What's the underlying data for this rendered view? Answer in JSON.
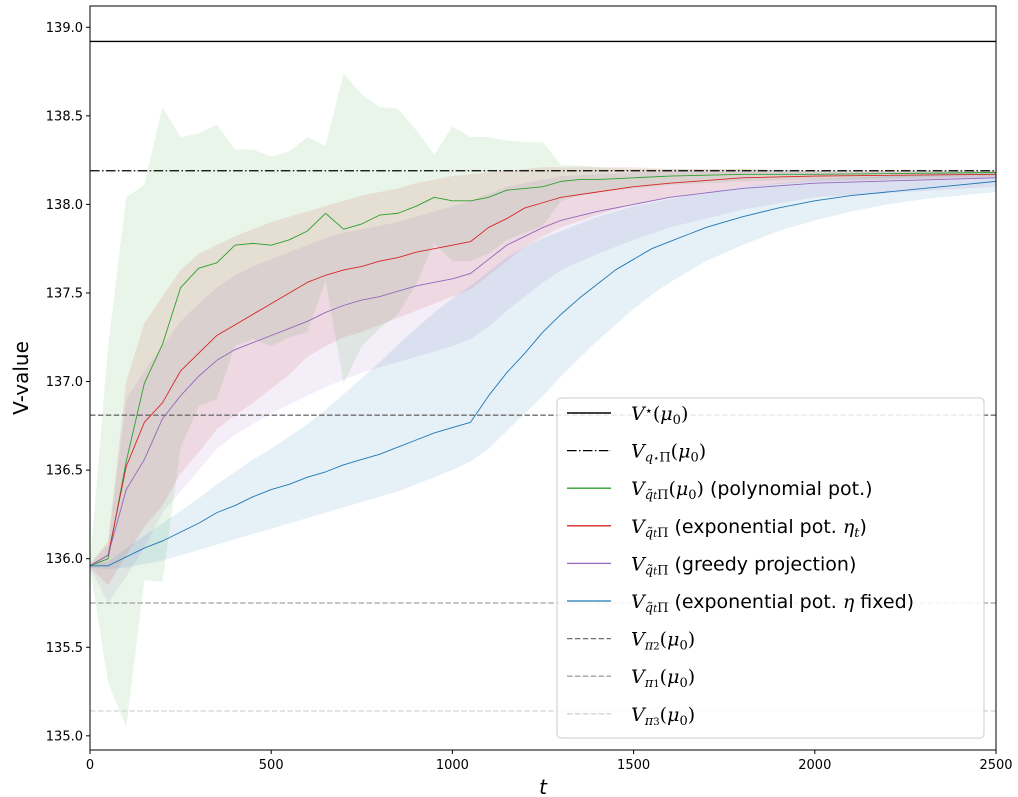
{
  "chart_data": {
    "type": "line",
    "xlabel": "t",
    "ylabel": "V-value",
    "xlim": [
      0,
      2500
    ],
    "ylim": [
      134.92,
      139.12
    ],
    "x_ticks": [
      "0",
      "500",
      "1000",
      "1500",
      "2000",
      "2500"
    ],
    "y_ticks": [
      "135.0",
      "135.5",
      "136.0",
      "136.5",
      "137.0",
      "137.5",
      "138.0",
      "138.5",
      "139.0"
    ],
    "grid": false,
    "legend_position": "lower-right",
    "hlines": [
      {
        "key": "vstar",
        "y": 138.92,
        "color": "#000000",
        "dash": "solid"
      },
      {
        "key": "vqpi",
        "y": 138.19,
        "color": "#000000",
        "dash": "dashdot"
      },
      {
        "key": "vpi2",
        "y": 136.81,
        "color": "#6e6e6e",
        "dash": "dashed"
      },
      {
        "key": "vpi1",
        "y": 135.75,
        "color": "#a3a3a3",
        "dash": "dashed"
      },
      {
        "key": "vpi3",
        "y": 135.14,
        "color": "#d3d3d3",
        "dash": "dashed"
      }
    ],
    "series": [
      {
        "key": "poly",
        "color": "#2ca02c",
        "x": [
          0,
          50,
          100,
          150,
          200,
          250,
          300,
          350,
          400,
          450,
          500,
          550,
          600,
          650,
          700,
          750,
          800,
          850,
          900,
          950,
          1000,
          1050,
          1100,
          1150,
          1200,
          1250,
          1300,
          1350,
          1400,
          1500,
          1600,
          1800,
          2000,
          2500
        ],
        "y": [
          135.96,
          136.0,
          136.55,
          136.99,
          137.21,
          137.53,
          137.64,
          137.67,
          137.77,
          137.78,
          137.77,
          137.8,
          137.85,
          137.95,
          137.86,
          137.89,
          137.94,
          137.95,
          137.99,
          138.04,
          138.02,
          138.02,
          138.04,
          138.08,
          138.09,
          138.1,
          138.13,
          138.14,
          138.14,
          138.15,
          138.16,
          138.17,
          138.17,
          138.18
        ],
        "upper": [
          135.97,
          137.2,
          138.04,
          138.11,
          138.55,
          138.38,
          138.4,
          138.45,
          138.31,
          138.31,
          138.27,
          138.3,
          138.38,
          138.33,
          138.74,
          138.62,
          138.55,
          138.54,
          138.42,
          138.28,
          138.44,
          138.38,
          138.38,
          138.36,
          138.35,
          138.35,
          138.22,
          138.22,
          138.21,
          138.2,
          138.2,
          138.2,
          138.19,
          138.19
        ],
        "lower": [
          135.95,
          135.3,
          135.05,
          135.88,
          135.87,
          136.63,
          136.86,
          136.9,
          137.2,
          137.24,
          137.2,
          137.25,
          137.28,
          137.57,
          136.99,
          137.2,
          137.3,
          137.38,
          137.55,
          137.78,
          137.68,
          137.68,
          137.72,
          137.8,
          137.84,
          137.88,
          138.02,
          138.05,
          138.07,
          138.09,
          138.11,
          138.13,
          138.14,
          138.16
        ]
      },
      {
        "key": "expeta",
        "color": "#d62728",
        "x": [
          0,
          50,
          100,
          150,
          200,
          250,
          300,
          350,
          400,
          450,
          500,
          550,
          600,
          650,
          700,
          750,
          800,
          850,
          900,
          950,
          1000,
          1050,
          1100,
          1150,
          1200,
          1250,
          1300,
          1400,
          1500,
          1600,
          1800,
          2000,
          2500
        ],
        "y": [
          135.96,
          136.02,
          136.52,
          136.77,
          136.88,
          137.06,
          137.16,
          137.26,
          137.32,
          137.38,
          137.44,
          137.5,
          137.56,
          137.6,
          137.63,
          137.65,
          137.68,
          137.7,
          137.73,
          137.75,
          137.77,
          137.79,
          137.87,
          137.92,
          137.98,
          138.01,
          138.04,
          138.07,
          138.1,
          138.12,
          138.15,
          138.16,
          138.17
        ],
        "upper": [
          135.97,
          136.1,
          137.0,
          137.33,
          137.48,
          137.63,
          137.72,
          137.77,
          137.82,
          137.86,
          137.9,
          137.93,
          137.96,
          137.99,
          138.02,
          138.05,
          138.07,
          138.09,
          138.12,
          138.14,
          138.16,
          138.17,
          138.18,
          138.19,
          138.2,
          138.21,
          138.21,
          138.21,
          138.21,
          138.2,
          138.2,
          138.19,
          138.19
        ],
        "lower": [
          135.95,
          135.85,
          136.02,
          136.18,
          136.3,
          136.48,
          136.6,
          136.73,
          136.81,
          136.88,
          136.96,
          137.04,
          137.14,
          137.2,
          137.25,
          137.28,
          137.32,
          137.36,
          137.4,
          137.44,
          137.48,
          137.52,
          137.6,
          137.68,
          137.76,
          137.82,
          137.87,
          137.94,
          138.0,
          138.04,
          138.1,
          138.13,
          138.15
        ]
      },
      {
        "key": "greedy",
        "color": "#9467bd",
        "x": [
          0,
          50,
          100,
          150,
          200,
          250,
          300,
          350,
          400,
          450,
          500,
          550,
          600,
          650,
          700,
          750,
          800,
          850,
          900,
          950,
          1000,
          1050,
          1100,
          1150,
          1200,
          1250,
          1300,
          1400,
          1500,
          1600,
          1800,
          2000,
          2500
        ],
        "y": [
          135.96,
          136.02,
          136.39,
          136.56,
          136.79,
          136.92,
          137.03,
          137.12,
          137.18,
          137.22,
          137.26,
          137.3,
          137.34,
          137.39,
          137.43,
          137.46,
          137.48,
          137.51,
          137.54,
          137.56,
          137.58,
          137.61,
          137.69,
          137.77,
          137.82,
          137.87,
          137.91,
          137.96,
          138.0,
          138.04,
          138.09,
          138.12,
          138.15
        ],
        "upper": [
          135.97,
          136.08,
          136.9,
          137.06,
          137.2,
          137.34,
          137.44,
          137.53,
          137.6,
          137.65,
          137.69,
          137.73,
          137.77,
          137.81,
          137.84,
          137.86,
          137.88,
          137.9,
          137.93,
          137.96,
          137.99,
          138.02,
          138.06,
          138.1,
          138.12,
          138.14,
          138.16,
          138.17,
          138.18,
          138.19,
          138.19,
          138.19,
          138.19
        ],
        "lower": [
          135.95,
          135.75,
          135.9,
          136.06,
          136.26,
          136.38,
          136.5,
          136.62,
          136.7,
          136.76,
          136.82,
          136.87,
          136.92,
          136.97,
          137.01,
          137.05,
          137.08,
          137.11,
          137.14,
          137.17,
          137.2,
          137.24,
          137.31,
          137.4,
          137.48,
          137.56,
          137.63,
          137.72,
          137.8,
          137.87,
          137.97,
          138.04,
          138.1
        ]
      },
      {
        "key": "expfixed",
        "color": "#1f77b4",
        "x": [
          0,
          50,
          100,
          150,
          200,
          250,
          300,
          350,
          400,
          450,
          500,
          550,
          600,
          650,
          700,
          750,
          800,
          850,
          900,
          950,
          1000,
          1050,
          1100,
          1150,
          1200,
          1250,
          1300,
          1350,
          1400,
          1450,
          1500,
          1550,
          1600,
          1650,
          1700,
          1800,
          1900,
          2000,
          2100,
          2200,
          2300,
          2400,
          2500
        ],
        "y": [
          135.96,
          135.96,
          136.01,
          136.06,
          136.1,
          136.15,
          136.2,
          136.26,
          136.3,
          136.35,
          136.39,
          136.42,
          136.46,
          136.49,
          136.53,
          136.56,
          136.59,
          136.63,
          136.67,
          136.71,
          136.74,
          136.77,
          136.92,
          137.05,
          137.16,
          137.28,
          137.38,
          137.47,
          137.55,
          137.63,
          137.69,
          137.75,
          137.79,
          137.83,
          137.87,
          137.93,
          137.98,
          138.02,
          138.05,
          138.07,
          138.09,
          138.11,
          138.13
        ],
        "upper": [
          135.97,
          135.98,
          136.06,
          136.13,
          136.2,
          136.27,
          136.34,
          136.42,
          136.49,
          136.56,
          136.62,
          136.69,
          136.76,
          136.84,
          136.93,
          137.02,
          137.11,
          137.21,
          137.3,
          137.39,
          137.47,
          137.54,
          137.62,
          137.7,
          137.76,
          137.81,
          137.85,
          137.89,
          137.93,
          137.96,
          137.99,
          138.01,
          138.03,
          138.05,
          138.07,
          138.1,
          138.12,
          138.14,
          138.15,
          138.16,
          138.17,
          138.18,
          138.18
        ],
        "lower": [
          135.95,
          135.94,
          135.95,
          135.97,
          135.99,
          136.02,
          136.05,
          136.08,
          136.11,
          136.14,
          136.17,
          136.2,
          136.23,
          136.26,
          136.29,
          136.32,
          136.35,
          136.38,
          136.42,
          136.46,
          136.5,
          136.55,
          136.62,
          136.72,
          136.82,
          136.92,
          137.03,
          137.13,
          137.23,
          137.32,
          137.41,
          137.49,
          137.56,
          137.62,
          137.68,
          137.77,
          137.85,
          137.91,
          137.96,
          138.0,
          138.03,
          138.05,
          138.07
        ]
      }
    ],
    "legend": [
      {
        "key": "vstar",
        "color": "#000000",
        "dash": "solid",
        "label": "V⋆(μ0)"
      },
      {
        "key": "vqpi",
        "color": "#000000",
        "dash": "dashdot",
        "label": "Vq⋆Π(μ0)"
      },
      {
        "key": "poly",
        "color": "#2ca02c",
        "dash": "solid",
        "label": "Vq̃tΠ(μ0) (polynomial pot.)"
      },
      {
        "key": "expeta",
        "color": "#d62728",
        "dash": "solid",
        "label": "Vq̃tΠ (exponential pot. ηt)"
      },
      {
        "key": "greedy",
        "color": "#9467bd",
        "dash": "solid",
        "label": "Vq̃tΠ (greedy projection)"
      },
      {
        "key": "expfixed",
        "color": "#1f77b4",
        "dash": "solid",
        "label": "Vq̃tΠ (exponential pot. η fixed)"
      },
      {
        "key": "vpi2",
        "color": "#6e6e6e",
        "dash": "dashed",
        "label": "Vπ2(μ0)"
      },
      {
        "key": "vpi1",
        "color": "#a3a3a3",
        "dash": "dashed",
        "label": "Vπ1(μ0)"
      },
      {
        "key": "vpi3",
        "color": "#d3d3d3",
        "dash": "dashed",
        "label": "Vπ3(μ0)"
      }
    ]
  }
}
